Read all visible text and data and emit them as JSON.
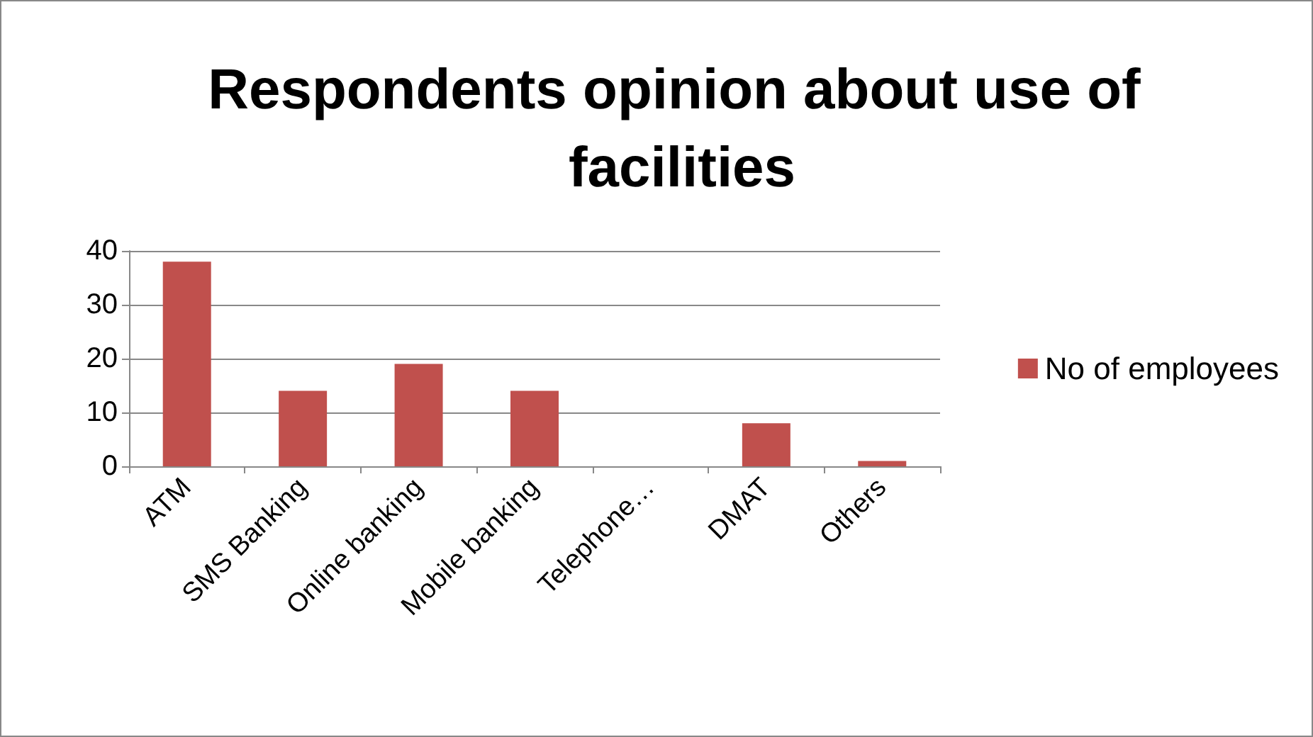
{
  "chart_data": {
    "type": "bar",
    "title": "Respondents opinion about use of facilities",
    "categories": [
      "ATM",
      "SMS Banking",
      "Online banking",
      "Mobile banking",
      "Telephone…",
      "DMAT",
      "Others"
    ],
    "series": [
      {
        "name": "No of employees",
        "color": "#c0504d",
        "values": [
          38,
          14,
          19,
          14,
          0,
          8,
          1
        ]
      }
    ],
    "ylim": [
      0,
      40
    ],
    "yticks": [
      0,
      10,
      20,
      30,
      40
    ],
    "grid": "y",
    "legend": "right"
  }
}
